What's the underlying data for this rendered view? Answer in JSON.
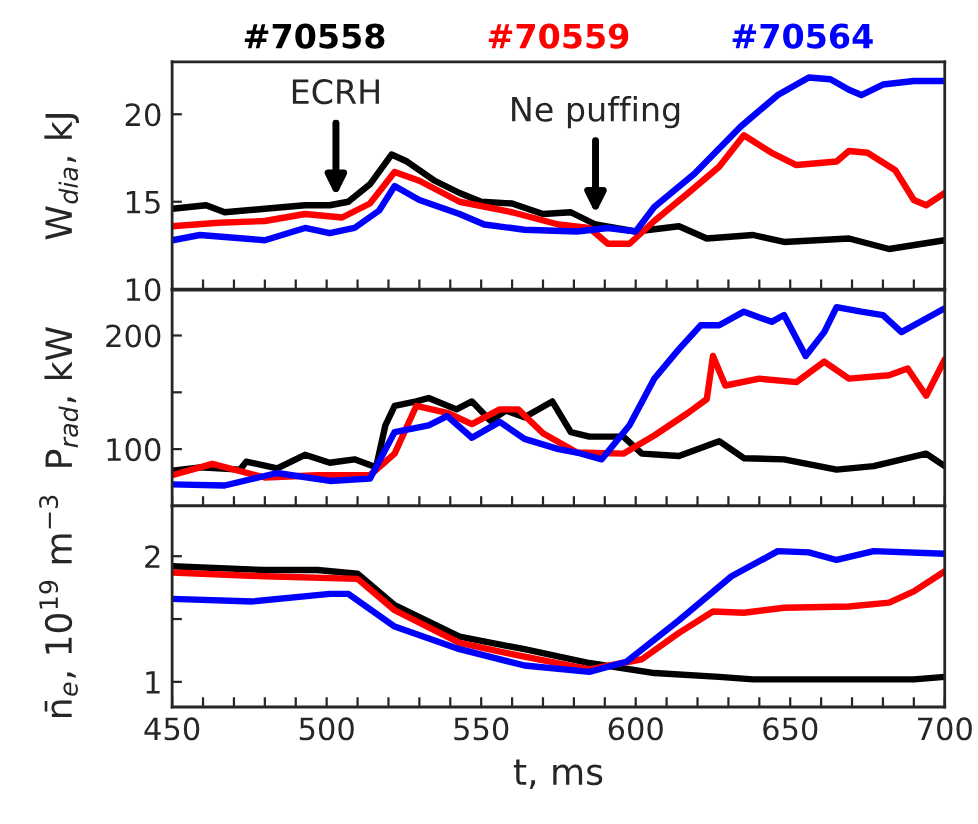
{
  "chart_data": [
    {
      "type": "line",
      "ylabel": "W$_{dia}$, kJ",
      "legend": "top",
      "tick_labels": "y",
      "line_style": "solid",
      "marker": "none",
      "xlim": [
        450,
        700
      ],
      "xticks": [
        450,
        {
          "value": 460,
          "label": null
        },
        {
          "value": 470,
          "label": null
        },
        {
          "value": 480,
          "label": null
        },
        {
          "value": 490,
          "label": null
        },
        500,
        {
          "value": 510,
          "label": null
        },
        {
          "value": 520,
          "label": null
        },
        {
          "value": 530,
          "label": null
        },
        {
          "value": 540,
          "label": null
        },
        550,
        {
          "value": 560,
          "label": null
        },
        {
          "value": 570,
          "label": null
        },
        {
          "value": 580,
          "label": null
        },
        {
          "value": 590,
          "label": null
        },
        600,
        {
          "value": 610,
          "label": null
        },
        {
          "value": 620,
          "label": null
        },
        {
          "value": 630,
          "label": null
        },
        {
          "value": 640,
          "label": null
        },
        650,
        {
          "value": 660,
          "label": null
        },
        {
          "value": 670,
          "label": null
        },
        {
          "value": 680,
          "label": null
        },
        {
          "value": 690,
          "label": null
        },
        700
      ],
      "ylim": [
        10,
        23
      ],
      "yticks": [
        10,
        15,
        20
      ],
      "annotations": [
        {
          "text": "ECRH",
          "x": 503,
          "y": 15
        },
        {
          "text": "Ne puffing",
          "x": 587,
          "y": 14
        }
      ],
      "series": [
        {
          "name": "#70558",
          "color": "#000000",
          "x": [
            450,
            461,
            467,
            480,
            493,
            501,
            507,
            514,
            521,
            526,
            535,
            543,
            550,
            560,
            570,
            579,
            587,
            600,
            614,
            623,
            638,
            648,
            669,
            682,
            700
          ],
          "values": [
            14.6,
            14.8,
            14.4,
            14.6,
            14.8,
            14.8,
            15.0,
            16.0,
            17.7,
            17.3,
            16.2,
            15.5,
            15.0,
            14.9,
            14.3,
            14.4,
            13.7,
            13.3,
            13.6,
            12.9,
            13.1,
            12.7,
            12.9,
            12.3,
            12.8
          ]
        },
        {
          "name": "#70559",
          "color": "#ff0000",
          "x": [
            450,
            465,
            480,
            493,
            505,
            514,
            522,
            530,
            543,
            560,
            575,
            585,
            591,
            598,
            606,
            617,
            627,
            635,
            644,
            652,
            665,
            669,
            675,
            684,
            690,
            694,
            700
          ],
          "values": [
            13.6,
            13.8,
            13.9,
            14.3,
            14.1,
            14.9,
            16.7,
            16.2,
            15.0,
            14.4,
            13.7,
            13.5,
            12.6,
            12.6,
            13.9,
            15.5,
            17.0,
            18.8,
            17.8,
            17.1,
            17.3,
            17.9,
            17.8,
            16.8,
            15.1,
            14.8,
            15.5
          ]
        },
        {
          "name": "#70564",
          "color": "#0000ff",
          "x": [
            450,
            459,
            480,
            493,
            501,
            509,
            517,
            522,
            530,
            543,
            551,
            564,
            581,
            591,
            600,
            606,
            619,
            634,
            646,
            656,
            663,
            669,
            673,
            680,
            690,
            700
          ],
          "values": [
            12.8,
            13.1,
            12.8,
            13.5,
            13.2,
            13.5,
            14.5,
            15.9,
            15.1,
            14.3,
            13.7,
            13.4,
            13.3,
            13.5,
            13.3,
            14.7,
            16.6,
            19.3,
            21.1,
            22.1,
            22.0,
            21.4,
            21.1,
            21.7,
            21.9,
            21.9
          ]
        }
      ]
    },
    {
      "type": "line",
      "ylabel": "P$_{rad}$, kW",
      "tick_labels": "y",
      "line_style": "solid",
      "marker": "none",
      "xlim": [
        450,
        700
      ],
      "xticks": [
        450,
        {
          "value": 460,
          "label": null
        },
        {
          "value": 470,
          "label": null
        },
        {
          "value": 480,
          "label": null
        },
        {
          "value": 490,
          "label": null
        },
        500,
        {
          "value": 510,
          "label": null
        },
        {
          "value": 520,
          "label": null
        },
        {
          "value": 530,
          "label": null
        },
        {
          "value": 540,
          "label": null
        },
        550,
        {
          "value": 560,
          "label": null
        },
        {
          "value": 570,
          "label": null
        },
        {
          "value": 580,
          "label": null
        },
        {
          "value": 590,
          "label": null
        },
        600,
        {
          "value": 610,
          "label": null
        },
        {
          "value": 620,
          "label": null
        },
        {
          "value": 630,
          "label": null
        },
        {
          "value": 640,
          "label": null
        },
        650,
        {
          "value": 660,
          "label": null
        },
        {
          "value": 670,
          "label": null
        },
        {
          "value": 680,
          "label": null
        },
        {
          "value": 690,
          "label": null
        },
        700
      ],
      "ylim": [
        50,
        240
      ],
      "yticks": [
        100,
        {
          "value": 150,
          "label": null
        },
        200
      ],
      "series": [
        {
          "color": "#000000",
          "x": [
            450,
            459,
            472,
            474,
            484,
            493,
            501,
            509,
            516,
            519,
            522,
            529,
            533,
            542,
            547,
            553,
            558,
            564,
            573,
            579,
            585,
            596,
            602,
            614,
            627,
            635,
            648,
            665,
            677,
            694,
            700
          ],
          "values": [
            81,
            84,
            82,
            89,
            83,
            95,
            88,
            91,
            84,
            121,
            138,
            142,
            145,
            135,
            142,
            125,
            134,
            128,
            142,
            115,
            111,
            111,
            96,
            94,
            107,
            92,
            91,
            82,
            85,
            96,
            85
          ]
        },
        {
          "color": "#ff0000",
          "x": [
            450,
            463,
            480,
            497,
            514,
            522,
            529,
            539,
            547,
            556,
            562,
            570,
            581,
            596,
            606,
            617,
            623,
            625,
            629,
            640,
            652,
            661,
            669,
            682,
            688,
            694,
            700
          ],
          "values": [
            77,
            87,
            75,
            77,
            77,
            96,
            138,
            132,
            122,
            135,
            135,
            114,
            97,
            96,
            112,
            132,
            144,
            182,
            156,
            162,
            159,
            177,
            162,
            165,
            171,
            147,
            179
          ]
        },
        {
          "color": "#0000ff",
          "x": [
            450,
            467,
            484,
            501,
            514,
            522,
            533,
            539,
            547,
            556,
            564,
            575,
            581,
            589,
            598,
            606,
            614,
            621,
            627,
            635,
            644,
            648,
            655,
            661,
            665,
            673,
            680,
            686,
            694,
            700
          ],
          "values": [
            69,
            68,
            79,
            72,
            74,
            115,
            121,
            129,
            110,
            124,
            109,
            100,
            97,
            91,
            121,
            162,
            188,
            209,
            209,
            221,
            212,
            218,
            182,
            203,
            225,
            221,
            218,
            203,
            215,
            224
          ]
        }
      ]
    },
    {
      "type": "line",
      "ylabel": "n̄$_{e}$, 10$^{19}$ m$^{−3}$",
      "xlabel": "t, ms",
      "line_style": "solid",
      "marker": "none",
      "xlim": [
        450,
        700
      ],
      "xticks": [
        450,
        {
          "value": 460,
          "label": null
        },
        {
          "value": 470,
          "label": null
        },
        {
          "value": 480,
          "label": null
        },
        {
          "value": 490,
          "label": null
        },
        500,
        {
          "value": 510,
          "label": null
        },
        {
          "value": 520,
          "label": null
        },
        {
          "value": 530,
          "label": null
        },
        {
          "value": 540,
          "label": null
        },
        550,
        {
          "value": 560,
          "label": null
        },
        {
          "value": 570,
          "label": null
        },
        {
          "value": 580,
          "label": null
        },
        {
          "value": 590,
          "label": null
        },
        600,
        {
          "value": 610,
          "label": null
        },
        {
          "value": 620,
          "label": null
        },
        {
          "value": 630,
          "label": null
        },
        {
          "value": 640,
          "label": null
        },
        650,
        {
          "value": 660,
          "label": null
        },
        {
          "value": 670,
          "label": null
        },
        {
          "value": 680,
          "label": null
        },
        {
          "value": 690,
          "label": null
        },
        700
      ],
      "ylim": [
        0.8,
        2.4
      ],
      "yticks": [
        1,
        {
          "value": 1.5,
          "label": null
        },
        2
      ],
      "series": [
        {
          "color": "#000000",
          "x": [
            450,
            480,
            497,
            510,
            522,
            543,
            564,
            585,
            606,
            627,
            638,
            669,
            690,
            700
          ],
          "values": [
            1.92,
            1.89,
            1.89,
            1.86,
            1.61,
            1.36,
            1.26,
            1.15,
            1.07,
            1.04,
            1.02,
            1.02,
            1.02,
            1.04
          ]
        },
        {
          "color": "#ff0000",
          "x": [
            450,
            480,
            510,
            522,
            543,
            564,
            585,
            602,
            614,
            625,
            635,
            648,
            669,
            682,
            690,
            700
          ],
          "values": [
            1.87,
            1.84,
            1.82,
            1.57,
            1.31,
            1.2,
            1.1,
            1.18,
            1.39,
            1.56,
            1.55,
            1.59,
            1.6,
            1.63,
            1.72,
            1.88
          ]
        },
        {
          "color": "#0000ff",
          "x": [
            450,
            476,
            501,
            507,
            522,
            543,
            564,
            585,
            597,
            614,
            631,
            646,
            656,
            665,
            677,
            700
          ],
          "values": [
            1.66,
            1.64,
            1.7,
            1.7,
            1.44,
            1.26,
            1.13,
            1.08,
            1.16,
            1.49,
            1.84,
            2.04,
            2.03,
            1.97,
            2.04,
            2.02
          ]
        }
      ]
    }
  ]
}
